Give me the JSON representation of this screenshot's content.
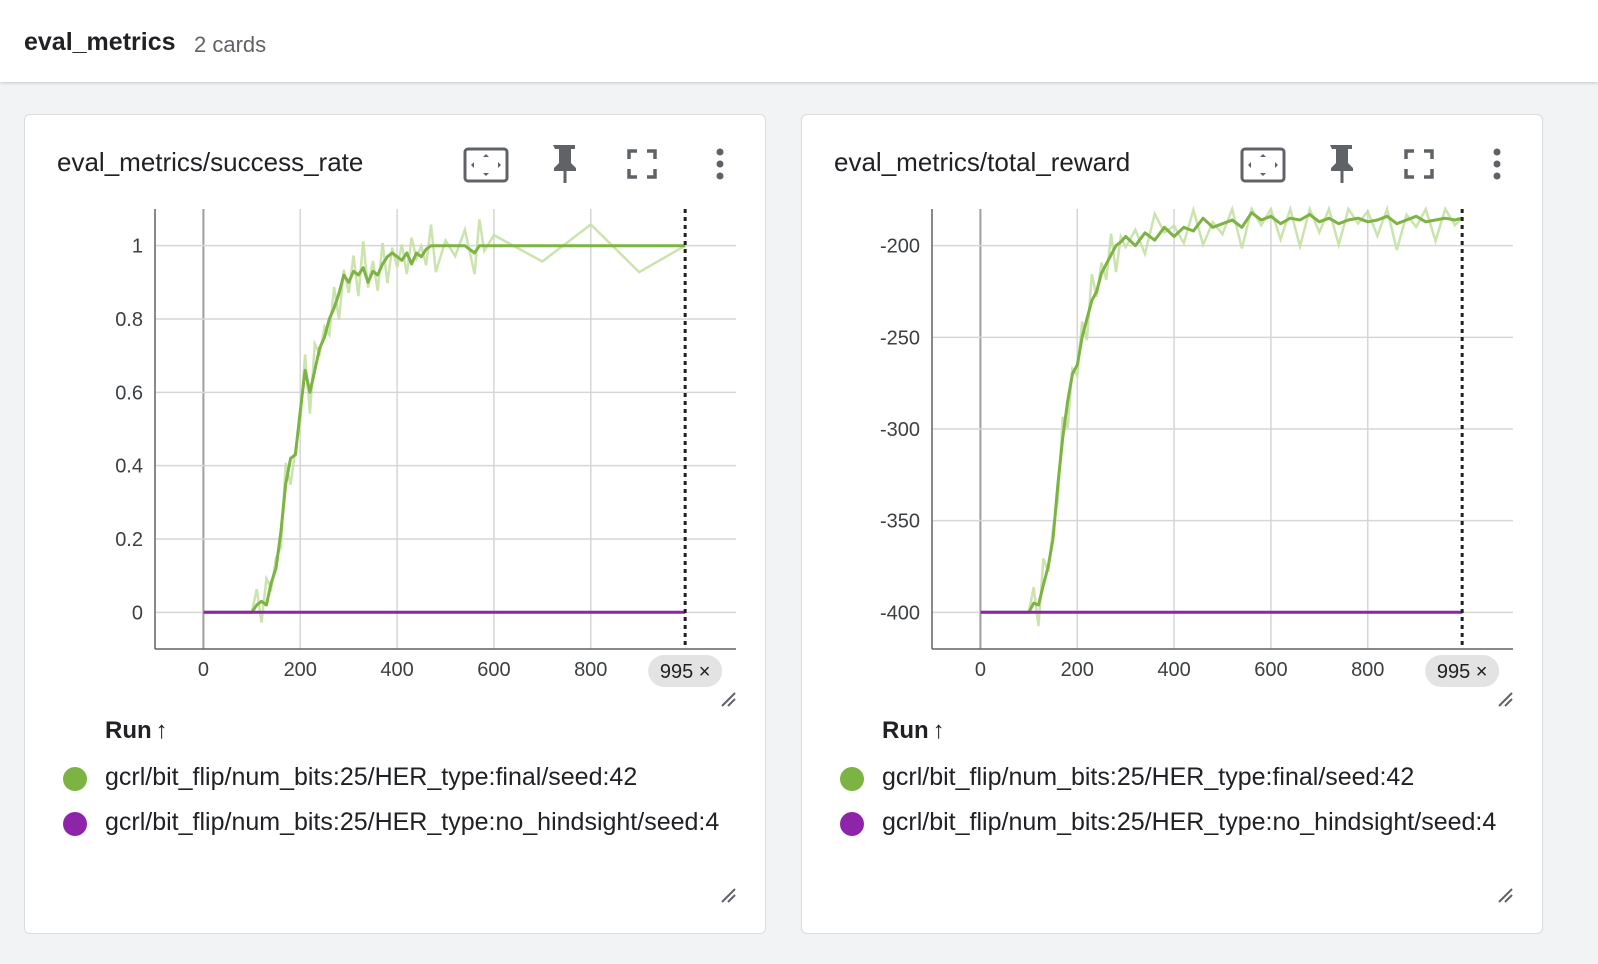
{
  "header": {
    "title": "eval_metrics",
    "count": "2 cards"
  },
  "colors": {
    "final": "#7cb342",
    "final_raw": "#c5e1a5",
    "no_hindsight": "#8e24aa"
  },
  "legend": {
    "header": "Run",
    "sort_icon": "arrow-up-icon",
    "runs": [
      {
        "label": "gcrl/bit_flip/num_bits:25/HER_type:final/seed:42",
        "color": "#7cb342"
      },
      {
        "label": "gcrl/bit_flip/num_bits:25/HER_type:no_hindsight/seed:4",
        "color": "#8e24aa"
      }
    ]
  },
  "cards": [
    {
      "title": "eval_metrics/success_rate"
    },
    {
      "title": "eval_metrics/total_reward"
    }
  ],
  "chart_data": [
    {
      "type": "line",
      "title": "eval_metrics/success_rate",
      "xlim": [
        -100,
        1100
      ],
      "ylim": [
        -0.1,
        1.1
      ],
      "x_ticks": [
        0,
        200,
        400,
        600,
        800
      ],
      "y_ticks": [
        0,
        0.2,
        0.4,
        0.6,
        0.8,
        1
      ],
      "y_tick_labels": [
        "0",
        "0.2",
        "0.4",
        "0.6",
        "0.8",
        "1"
      ],
      "cursor_step": "995 ×",
      "series": [
        {
          "name": "gcrl/bit_flip/num_bits:25/HER_type:final/seed:42",
          "x": [
            0,
            100,
            110,
            120,
            130,
            140,
            150,
            160,
            170,
            180,
            190,
            200,
            210,
            220,
            230,
            240,
            250,
            260,
            270,
            280,
            290,
            300,
            310,
            320,
            330,
            340,
            350,
            360,
            370,
            380,
            390,
            400,
            410,
            420,
            430,
            440,
            450,
            460,
            470,
            480,
            500,
            520,
            540,
            560,
            570,
            580,
            600,
            700,
            800,
            900,
            995
          ],
          "y": [
            0,
            0,
            0.02,
            0.03,
            0.02,
            0.08,
            0.12,
            0.22,
            0.35,
            0.42,
            0.43,
            0.55,
            0.66,
            0.6,
            0.66,
            0.72,
            0.75,
            0.8,
            0.83,
            0.87,
            0.92,
            0.9,
            0.93,
            0.92,
            0.94,
            0.9,
            0.93,
            0.92,
            0.95,
            0.97,
            0.98,
            0.97,
            0.96,
            0.98,
            0.95,
            0.98,
            0.97,
            0.99,
            1.0,
            1.0,
            1.0,
            1.0,
            1.0,
            0.98,
            1.0,
            1.0,
            1.0,
            1.0,
            1.0,
            1.0,
            1.0
          ]
        },
        {
          "name": "gcrl/bit_flip/num_bits:25/HER_type:no_hindsight/seed:4",
          "x": [
            0,
            995
          ],
          "y": [
            0,
            0
          ]
        }
      ]
    },
    {
      "type": "line",
      "title": "eval_metrics/total_reward",
      "xlim": [
        -100,
        1100
      ],
      "ylim": [
        -420,
        -180
      ],
      "x_ticks": [
        0,
        200,
        400,
        600,
        800
      ],
      "y_ticks": [
        -400,
        -350,
        -300,
        -250,
        -200
      ],
      "y_tick_labels": [
        "-400",
        "-350",
        "-300",
        "-250",
        "-200"
      ],
      "cursor_step": "995 ×",
      "series": [
        {
          "name": "gcrl/bit_flip/num_bits:25/HER_type:final/seed:42",
          "x": [
            0,
            100,
            110,
            120,
            130,
            140,
            150,
            160,
            170,
            180,
            190,
            200,
            210,
            220,
            230,
            240,
            250,
            260,
            270,
            280,
            290,
            300,
            320,
            340,
            360,
            380,
            400,
            420,
            440,
            460,
            480,
            500,
            520,
            540,
            560,
            580,
            600,
            620,
            640,
            660,
            680,
            700,
            720,
            740,
            760,
            780,
            800,
            820,
            840,
            860,
            880,
            900,
            920,
            940,
            960,
            980,
            995
          ],
          "y": [
            -400,
            -400,
            -395,
            -396,
            -385,
            -375,
            -360,
            -330,
            -305,
            -285,
            -270,
            -265,
            -250,
            -240,
            -230,
            -225,
            -215,
            -210,
            -205,
            -200,
            -198,
            -195,
            -200,
            -193,
            -197,
            -190,
            -195,
            -190,
            -192,
            -185,
            -190,
            -188,
            -186,
            -190,
            -182,
            -186,
            -184,
            -188,
            -185,
            -186,
            -183,
            -187,
            -185,
            -188,
            -186,
            -185,
            -187,
            -186,
            -184,
            -188,
            -186,
            -184,
            -187,
            -186,
            -185,
            -186,
            -185
          ]
        },
        {
          "name": "gcrl/bit_flip/num_bits:25/HER_type:no_hindsight/seed:4",
          "x": [
            0,
            995
          ],
          "y": [
            -400,
            -400
          ]
        }
      ]
    }
  ]
}
